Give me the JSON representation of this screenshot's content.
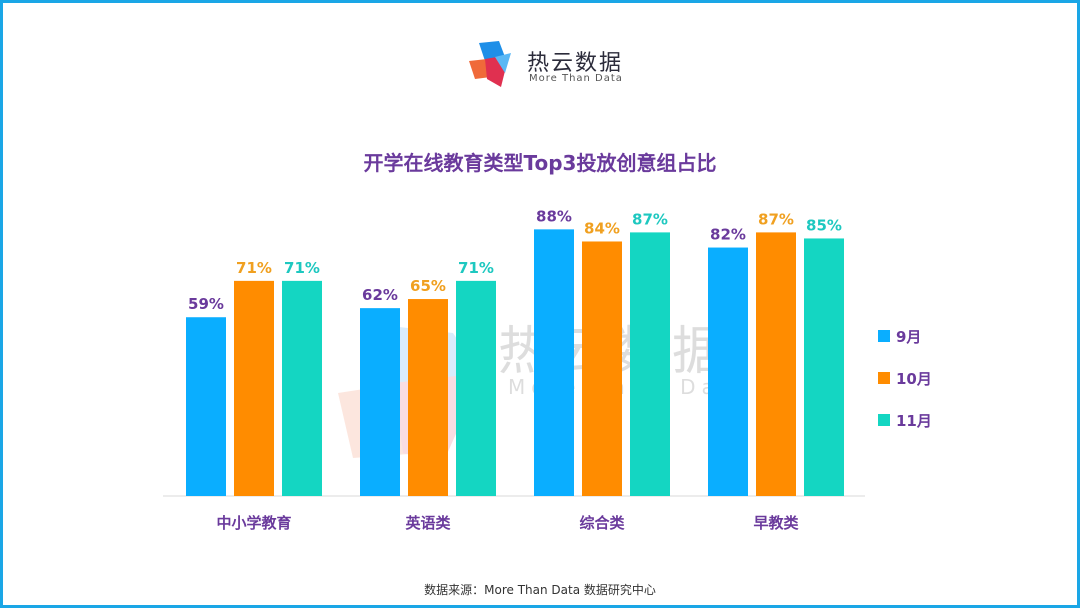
{
  "brand": {
    "name": "热云数据",
    "tagline": "More Than Data"
  },
  "source_note": "数据来源：More Than Data 数据研究中心",
  "chart_data": {
    "type": "bar",
    "title": "开学在线教育类型Top3投放创意组占比",
    "categories": [
      "中小学教育",
      "英语类",
      "综合类",
      "早教类"
    ],
    "series": [
      {
        "name": "9月",
        "color": "#0aaeff",
        "label_color": "#6a3a9c",
        "values": [
          59,
          62,
          88,
          82
        ]
      },
      {
        "name": "10月",
        "color": "#ff8c00",
        "label_color": "#f0a020",
        "values": [
          71,
          65,
          84,
          87
        ]
      },
      {
        "name": "11月",
        "color": "#14d6c2",
        "label_color": "#1ec8c0",
        "values": [
          71,
          71,
          87,
          85
        ]
      }
    ],
    "value_suffix": "%",
    "ylim": [
      0,
      100
    ],
    "grid": false,
    "legend_position": "right",
    "xlabel": "",
    "ylabel": ""
  }
}
